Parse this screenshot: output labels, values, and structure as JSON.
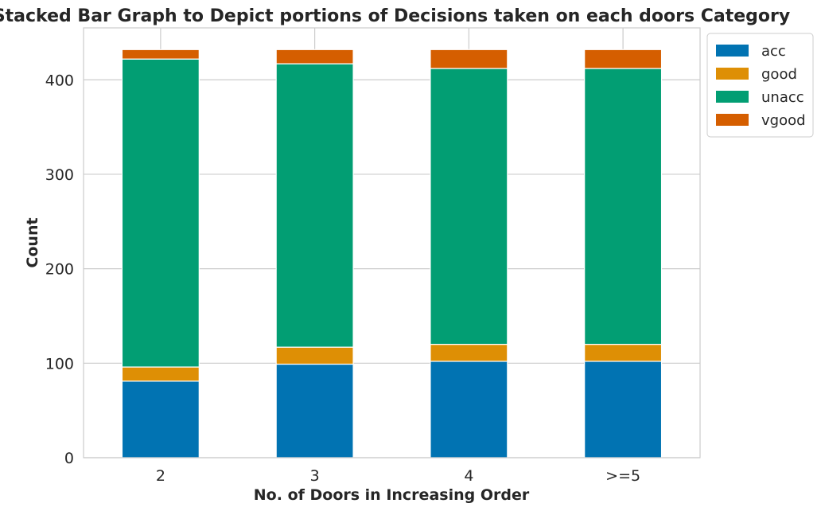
{
  "chart_data": {
    "type": "bar",
    "stacked": true,
    "title": "Stacked Bar Graph to Depict portions of Decisions taken on each doors Category",
    "xlabel": "No. of Doors in Increasing Order",
    "ylabel": "Count",
    "categories": [
      "2",
      "3",
      "4",
      ">=5"
    ],
    "series": [
      {
        "name": "acc",
        "color": "#0173b2",
        "values": [
          81,
          99,
          102,
          102
        ]
      },
      {
        "name": "good",
        "color": "#de8f05",
        "values": [
          15,
          18,
          18,
          18
        ]
      },
      {
        "name": "unacc",
        "color": "#029e73",
        "values": [
          326,
          300,
          292,
          292
        ]
      },
      {
        "name": "vgood",
        "color": "#d55e00",
        "values": [
          10,
          15,
          20,
          20
        ]
      }
    ],
    "ylim": [
      0,
      455
    ],
    "yticks": [
      0,
      100,
      200,
      300,
      400
    ],
    "grid": true,
    "legend_position": "outside-top-right"
  }
}
